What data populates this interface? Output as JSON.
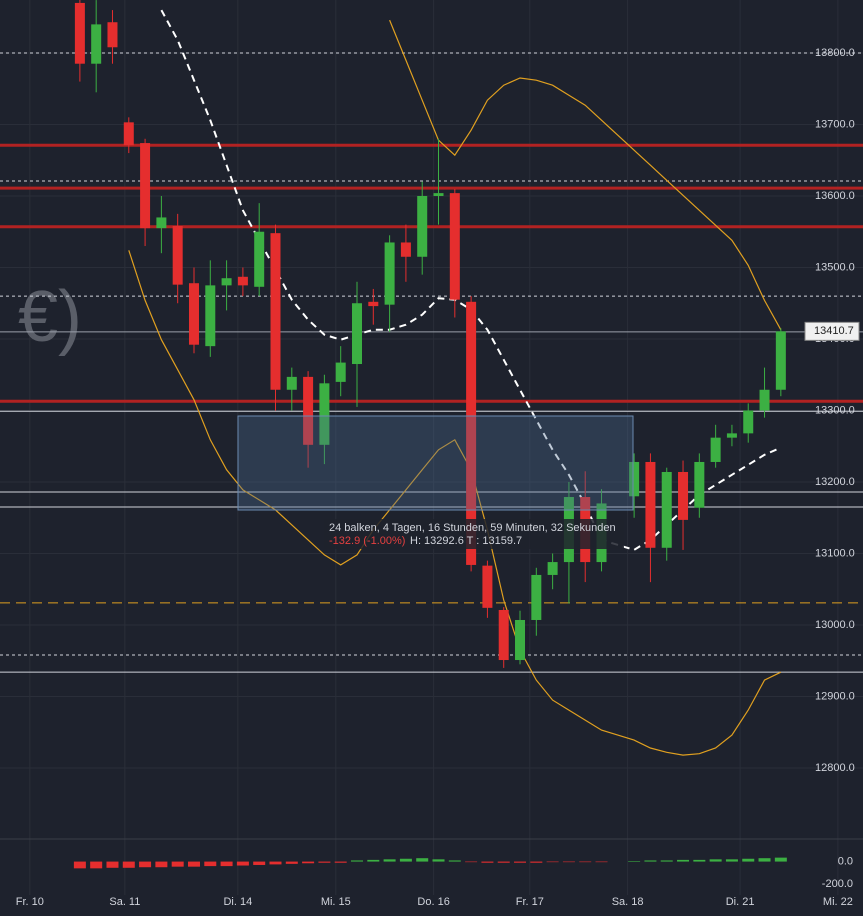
{
  "chart_data": {
    "type": "candlestick",
    "x": [
      0,
      1,
      2,
      3,
      4,
      5,
      6,
      7,
      8,
      9,
      10,
      11,
      12,
      13,
      14,
      15,
      16,
      17,
      18,
      19,
      20,
      21,
      22,
      23,
      24,
      25,
      26,
      27,
      28,
      29,
      30,
      31,
      32,
      34,
      35,
      36,
      37,
      38,
      39,
      40,
      41,
      42,
      43
    ],
    "open": [
      13870,
      13785,
      13843,
      13703,
      13674,
      13555,
      13558,
      13478,
      13390,
      13475,
      13487,
      13473,
      13548,
      13329,
      13347,
      13252,
      13340,
      13365,
      13452,
      13448,
      13535,
      13515,
      13600,
      13604,
      13452,
      13083,
      13021,
      12951,
      13007,
      13070,
      13088,
      13179,
      13088,
      13180,
      13228,
      13108,
      13214,
      13164,
      13228,
      13262,
      13268,
      13300,
      13329
    ],
    "high": [
      13880,
      13874,
      13860,
      13710,
      13680,
      13600,
      13575,
      13500,
      13510,
      13510,
      13500,
      13590,
      13560,
      13360,
      13355,
      13350,
      13390,
      13480,
      13470,
      13545,
      13560,
      13620,
      13680,
      13610,
      13460,
      13090,
      13025,
      13020,
      13080,
      13100,
      13200,
      13215,
      13190,
      13240,
      13240,
      13220,
      13230,
      13240,
      13280,
      13280,
      13310,
      13360,
      13415
    ],
    "low": [
      13760,
      13745,
      13785,
      13660,
      13530,
      13520,
      13450,
      13380,
      13375,
      13440,
      13460,
      13460,
      13300,
      13300,
      13220,
      13225,
      13320,
      13305,
      13420,
      13410,
      13480,
      13490,
      13560,
      13430,
      13075,
      13010,
      12940,
      12945,
      12985,
      13050,
      13030,
      13060,
      13075,
      13150,
      13060,
      13090,
      13105,
      13150,
      13220,
      13250,
      13255,
      13290,
      13320
    ],
    "close": [
      13785,
      13840,
      13808,
      13671,
      13555,
      13570,
      13476,
      13392,
      13475,
      13485,
      13475,
      13550,
      13329,
      13347,
      13252,
      13338,
      13367,
      13450,
      13446,
      13535,
      13515,
      13600,
      13604,
      13455,
      13084,
      13024,
      12951,
      13007,
      13070,
      13088,
      13179,
      13088,
      13170,
      13228,
      13108,
      13214,
      13147,
      13228,
      13262,
      13268,
      13300,
      13329,
      13410.7
    ],
    "up_color": "#3cb043",
    "down_color": "#e52e2e",
    "grid": true,
    "xlim": [
      -4.9,
      48.04
    ],
    "xticks": [
      {
        "value": -3.07,
        "label": "Fr. 10"
      },
      {
        "value": 2.76,
        "label": "Sa. 11"
      },
      {
        "value": 9.69,
        "label": "Di. 14"
      },
      {
        "value": 15.7,
        "label": "Mi. 15"
      },
      {
        "value": 21.7,
        "label": "Do. 16"
      },
      {
        "value": 27.6,
        "label": "Fr. 17"
      },
      {
        "value": 33.6,
        "label": "Sa. 18"
      },
      {
        "value": 40.5,
        "label": "Di. 21"
      },
      {
        "value": 46.5,
        "label": "Mi. 22"
      }
    ],
    "ylim": [
      12700.7,
      13874.1
    ],
    "yticks": [
      {
        "value": 12800,
        "label": "12800.0"
      },
      {
        "value": 12900,
        "label": "12900.0"
      },
      {
        "value": 13000,
        "label": "13000.0"
      },
      {
        "value": 13100,
        "label": "13100.0"
      },
      {
        "value": 13200,
        "label": "13200.0"
      },
      {
        "value": 13300,
        "label": "13300.0"
      },
      {
        "value": 13400,
        "label": "13400.0"
      },
      {
        "value": 13500,
        "label": "13500.0"
      },
      {
        "value": 13600,
        "label": "13600.0"
      },
      {
        "value": 13700,
        "label": "13700.0"
      },
      {
        "value": 13800,
        "label": "13800.0"
      }
    ],
    "levels": [
      {
        "value": 13671,
        "color": "#b22222",
        "style": "solid"
      },
      {
        "value": 13611,
        "color": "#b22222",
        "style": "solid"
      },
      {
        "value": 13557,
        "color": "#b22222",
        "style": "solid"
      },
      {
        "value": 13313,
        "color": "#b22222",
        "style": "solid"
      },
      {
        "value": 13800,
        "color": "#d1d4dc",
        "style": "dashed"
      },
      {
        "value": 13621,
        "color": "#d1d4dc",
        "style": "dashed"
      },
      {
        "value": 13460,
        "color": "#d1d4dc",
        "style": "dashed"
      },
      {
        "value": 12958,
        "color": "#d1d4dc",
        "style": "dashed"
      },
      {
        "value": 13031,
        "color": "#e0a020",
        "style": "dashed"
      },
      {
        "value": 13410,
        "color": "#9aa0aa",
        "style": "solid"
      },
      {
        "value": 13299,
        "color": "#d1d4dc",
        "style": "solid"
      },
      {
        "value": 13186,
        "color": "#d1d4dc",
        "style": "solid"
      },
      {
        "value": 13165,
        "color": "#d1d4dc",
        "style": "solid"
      },
      {
        "value": 12934,
        "color": "#d1d4dc",
        "style": "solid"
      }
    ],
    "overlays": [
      {
        "color": "#e0a020",
        "style": "solid",
        "values": [
          null,
          null,
          null,
          13524,
          13454,
          13399,
          13357,
          13315,
          13259,
          13217,
          13189,
          13175,
          13161,
          13140,
          13119,
          13098,
          13084,
          13098,
          13133,
          13161,
          13189,
          13217,
          13245,
          13259,
          13217,
          13133,
          13035,
          12965,
          12923,
          12895,
          12881,
          12867,
          12853,
          12839,
          12828,
          12822,
          12818,
          12820,
          12828,
          12846,
          12881,
          12923,
          12934
        ]
      },
      {
        "color": "#e0a020",
        "style": "solid",
        "values": [
          null,
          null,
          null,
          null,
          null,
          null,
          null,
          null,
          null,
          null,
          null,
          null,
          null,
          null,
          null,
          null,
          null,
          null,
          null,
          13846,
          13790,
          13734,
          13678,
          13657,
          13692,
          13734,
          13755,
          13765,
          13762,
          13755,
          13741,
          13727,
          13706,
          13664,
          13643,
          13622,
          13601,
          13580,
          13559,
          13538,
          13503,
          13454,
          13413
        ]
      },
      {
        "color": "#ffffff",
        "style": "dashed",
        "values": [
          null,
          null,
          null,
          null,
          null,
          13860,
          13818,
          13762,
          13706,
          13643,
          13580,
          13538,
          13497,
          13455,
          13427,
          13406,
          13399,
          13406,
          13413,
          13413,
          13420,
          13434,
          13457,
          13455,
          13441,
          13413,
          13371,
          13329,
          13287,
          13245,
          13210,
          13168,
          13119,
          13105,
          13119,
          13140,
          13161,
          13182,
          13196,
          13210,
          13224,
          13238,
          13248
        ]
      }
    ],
    "watermark": "€)",
    "measure": {
      "line1": "24 balken, 4 Tagen, 16 Stunden, 59 Minuten, 32 Sekunden",
      "change": "-132.9 (-1.00%)",
      "range": "H: 13292.6 T : 13159.7"
    },
    "indicator": {
      "type": "bar",
      "ylim": [
        -296,
        200
      ],
      "yticks": [
        {
          "value": 0,
          "label": "0.0"
        },
        {
          "value": -200,
          "label": "-200.0"
        }
      ],
      "values": [
        -60,
        -60,
        -55,
        -55,
        -50,
        -50,
        -45,
        -45,
        -40,
        -40,
        -35,
        -30,
        -25,
        -20,
        -15,
        -10,
        -10,
        10,
        15,
        20,
        25,
        30,
        20,
        10,
        -5,
        -10,
        -10,
        -10,
        -10,
        -5,
        -5,
        -5,
        -5,
        5,
        10,
        10,
        15,
        15,
        20,
        20,
        25,
        30,
        35
      ]
    }
  }
}
